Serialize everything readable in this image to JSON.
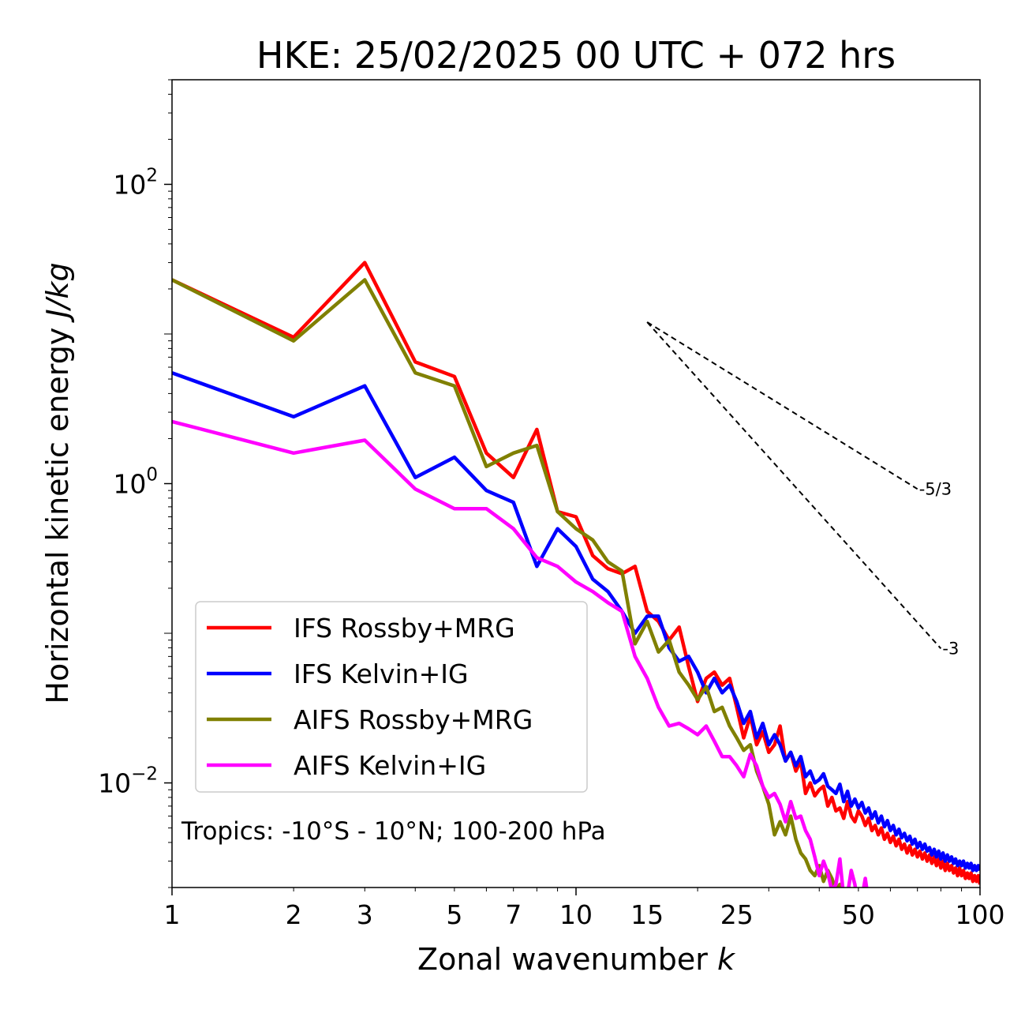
{
  "chart_data": {
    "type": "line",
    "title": "HKE: 25/02/2025 00 UTC + 072 hrs",
    "xlabel_text": "Zonal wavenumber ",
    "xlabel_var": "k",
    "ylabel_text": "Horizontal kinetic energy ",
    "ylabel_var": "J/kg",
    "x_scale": "log",
    "y_scale": "log",
    "xlim": [
      1,
      100
    ],
    "ylim": [
      0.002,
      500
    ],
    "x_ticks": [
      1,
      2,
      3,
      5,
      7,
      10,
      15,
      25,
      50,
      100
    ],
    "x_tick_labels": [
      "1",
      "2",
      "3",
      "5",
      "7",
      "10",
      "15",
      "25",
      "50",
      "100"
    ],
    "y_ticks": [
      0.01,
      1,
      100
    ],
    "y_tick_labels": [
      "10",
      "10",
      "10"
    ],
    "y_tick_exponents": [
      "−2",
      "0",
      "2"
    ],
    "grid": false,
    "legend_position": "lower-left",
    "annotation": "Tropics: -10°S - 10°N; 100-200 hPa",
    "reference_lines": [
      {
        "label": "-5/3",
        "slope": -1.6667,
        "x_start": 15,
        "y_start": 12,
        "x_end": 70
      },
      {
        "label": "-3",
        "slope": -3,
        "x_start": 15,
        "y_start": 12,
        "x_end": 80
      }
    ],
    "series": [
      {
        "name": "IFS Rossby+MRG",
        "color": "#ff0000",
        "x": [
          1,
          2,
          3,
          4,
          5,
          6,
          7,
          8,
          9,
          10,
          11,
          12,
          13,
          14,
          15,
          16,
          17,
          18,
          19,
          20,
          21,
          22,
          23,
          24,
          25,
          26,
          27,
          28,
          29,
          30,
          31,
          32,
          33,
          34,
          35,
          36,
          37,
          38,
          39,
          40,
          41,
          42,
          43,
          44,
          45,
          46,
          47,
          48,
          49,
          50,
          51,
          52,
          53,
          54,
          55,
          56,
          57,
          58,
          59,
          60,
          61,
          62,
          63,
          64,
          65,
          66,
          67,
          68,
          69,
          70,
          71,
          72,
          73,
          74,
          75,
          76,
          77,
          78,
          79,
          80,
          81,
          82,
          83,
          84,
          85,
          86,
          87,
          88,
          89,
          90,
          91,
          92,
          93,
          94,
          95,
          96,
          97,
          98,
          99,
          100
        ],
        "y": [
          23,
          9.5,
          30,
          6.5,
          5.2,
          1.6,
          1.1,
          2.3,
          0.65,
          0.6,
          0.33,
          0.27,
          0.25,
          0.28,
          0.14,
          0.12,
          0.09,
          0.11,
          0.06,
          0.035,
          0.05,
          0.055,
          0.045,
          0.05,
          0.032,
          0.02,
          0.028,
          0.018,
          0.022,
          0.016,
          0.018,
          0.024,
          0.014,
          0.016,
          0.012,
          0.014,
          0.0085,
          0.01,
          0.0082,
          0.009,
          0.0095,
          0.007,
          0.008,
          0.0065,
          0.0068,
          0.0058,
          0.0075,
          0.006,
          0.0055,
          0.0065,
          0.006,
          0.0052,
          0.0058,
          0.0048,
          0.0052,
          0.0045,
          0.005,
          0.0042,
          0.0046,
          0.004,
          0.0044,
          0.0038,
          0.0042,
          0.0036,
          0.0039,
          0.0034,
          0.0038,
          0.0033,
          0.0036,
          0.0032,
          0.0035,
          0.0031,
          0.0034,
          0.003,
          0.0033,
          0.0029,
          0.0032,
          0.0028,
          0.0031,
          0.0027,
          0.003,
          0.0026,
          0.0029,
          0.0026,
          0.0028,
          0.0025,
          0.0027,
          0.0024,
          0.0027,
          0.0024,
          0.0026,
          0.0023,
          0.0025,
          0.0023,
          0.0025,
          0.0022,
          0.0024,
          0.0022,
          0.0024,
          0.0021
        ]
      },
      {
        "name": "IFS Kelvin+IG",
        "color": "#0000ff",
        "x": [
          1,
          2,
          3,
          4,
          5,
          6,
          7,
          8,
          9,
          10,
          11,
          12,
          13,
          14,
          15,
          16,
          17,
          18,
          19,
          20,
          21,
          22,
          23,
          24,
          25,
          26,
          27,
          28,
          29,
          30,
          31,
          32,
          33,
          34,
          35,
          36,
          37,
          38,
          39,
          40,
          41,
          42,
          43,
          44,
          45,
          46,
          47,
          48,
          49,
          50,
          51,
          52,
          53,
          54,
          55,
          56,
          57,
          58,
          59,
          60,
          61,
          62,
          63,
          64,
          65,
          66,
          67,
          68,
          69,
          70,
          71,
          72,
          73,
          74,
          75,
          76,
          77,
          78,
          79,
          80,
          81,
          82,
          83,
          84,
          85,
          86,
          87,
          88,
          89,
          90,
          91,
          92,
          93,
          94,
          95,
          96,
          97,
          98,
          99,
          100
        ],
        "y": [
          5.5,
          2.8,
          4.5,
          1.1,
          1.5,
          0.9,
          0.75,
          0.28,
          0.5,
          0.38,
          0.23,
          0.19,
          0.14,
          0.1,
          0.13,
          0.13,
          0.08,
          0.065,
          0.07,
          0.055,
          0.04,
          0.05,
          0.04,
          0.045,
          0.035,
          0.025,
          0.03,
          0.02,
          0.025,
          0.018,
          0.021,
          0.018,
          0.014,
          0.016,
          0.013,
          0.015,
          0.011,
          0.012,
          0.01,
          0.0105,
          0.0115,
          0.0095,
          0.009,
          0.0085,
          0.0098,
          0.0075,
          0.0088,
          0.007,
          0.0078,
          0.0068,
          0.0074,
          0.0063,
          0.0068,
          0.0058,
          0.0064,
          0.0054,
          0.006,
          0.0051,
          0.0056,
          0.0048,
          0.0052,
          0.0045,
          0.0049,
          0.0043,
          0.0046,
          0.0041,
          0.0044,
          0.0039,
          0.0042,
          0.0037,
          0.004,
          0.0036,
          0.0039,
          0.0035,
          0.0037,
          0.0033,
          0.0036,
          0.0032,
          0.0035,
          0.0031,
          0.0034,
          0.003,
          0.0033,
          0.003,
          0.0032,
          0.0029,
          0.0031,
          0.0028,
          0.003,
          0.0028,
          0.003,
          0.0027,
          0.0029,
          0.0027,
          0.0029,
          0.0026,
          0.0028,
          0.0026,
          0.0028,
          0.0026
        ]
      },
      {
        "name": "AIFS Rossby+MRG",
        "color": "#808000",
        "x": [
          1,
          2,
          3,
          4,
          5,
          6,
          7,
          8,
          9,
          10,
          11,
          12,
          13,
          14,
          15,
          16,
          17,
          18,
          19,
          20,
          21,
          22,
          23,
          24,
          25,
          26,
          27,
          28,
          29,
          30,
          31,
          32,
          33,
          34,
          35,
          36,
          37,
          38,
          39,
          40,
          41,
          42,
          43,
          44,
          45,
          46,
          47,
          48,
          49,
          50
        ],
        "y": [
          23,
          9,
          23,
          5.5,
          4.5,
          1.3,
          1.6,
          1.8,
          0.65,
          0.5,
          0.42,
          0.3,
          0.26,
          0.085,
          0.12,
          0.075,
          0.09,
          0.055,
          0.045,
          0.036,
          0.044,
          0.03,
          0.032,
          0.024,
          0.02,
          0.0165,
          0.018,
          0.012,
          0.0095,
          0.0072,
          0.0045,
          0.0055,
          0.0045,
          0.006,
          0.0042,
          0.0034,
          0.0031,
          0.0026,
          0.0024,
          0.0028,
          0.0022,
          0.0026,
          0.0023,
          0.0019,
          0.0021,
          0.0017,
          0.0019,
          0.0016,
          0.0017,
          0.0015
        ]
      },
      {
        "name": "AIFS Kelvin+IG",
        "color": "#ff00ff",
        "x": [
          1,
          2,
          3,
          4,
          5,
          6,
          7,
          8,
          9,
          10,
          11,
          12,
          13,
          14,
          15,
          16,
          17,
          18,
          19,
          20,
          21,
          22,
          23,
          24,
          25,
          26,
          27,
          28,
          29,
          30,
          31,
          32,
          33,
          34,
          35,
          36,
          37,
          38,
          39,
          40,
          41,
          42,
          43,
          44,
          45,
          46,
          47,
          48,
          49,
          50,
          51,
          52,
          53,
          54,
          55,
          56,
          57,
          58,
          59,
          60,
          61,
          62,
          63,
          64,
          65,
          66,
          67,
          68,
          69,
          70
        ],
        "y": [
          2.6,
          1.6,
          1.95,
          0.92,
          0.68,
          0.68,
          0.5,
          0.32,
          0.28,
          0.22,
          0.19,
          0.16,
          0.14,
          0.07,
          0.05,
          0.032,
          0.024,
          0.025,
          0.023,
          0.021,
          0.024,
          0.019,
          0.015,
          0.015,
          0.013,
          0.011,
          0.0155,
          0.013,
          0.0095,
          0.008,
          0.0085,
          0.0072,
          0.0055,
          0.0075,
          0.0058,
          0.006,
          0.0048,
          0.0042,
          0.0032,
          0.0024,
          0.003,
          0.0025,
          0.0019,
          0.0021,
          0.0031,
          0.0017,
          0.0018,
          0.0026,
          0.0021,
          0.0015,
          0.0017,
          0.0023,
          0.0016,
          0.0019,
          0.0015,
          0.0014,
          0.0016,
          0.0018,
          0.0013,
          0.0015,
          0.0014,
          0.0017,
          0.0013,
          0.0012,
          0.0016,
          0.0014,
          0.0013,
          0.0015,
          0.0012,
          0.0014
        ]
      }
    ]
  }
}
